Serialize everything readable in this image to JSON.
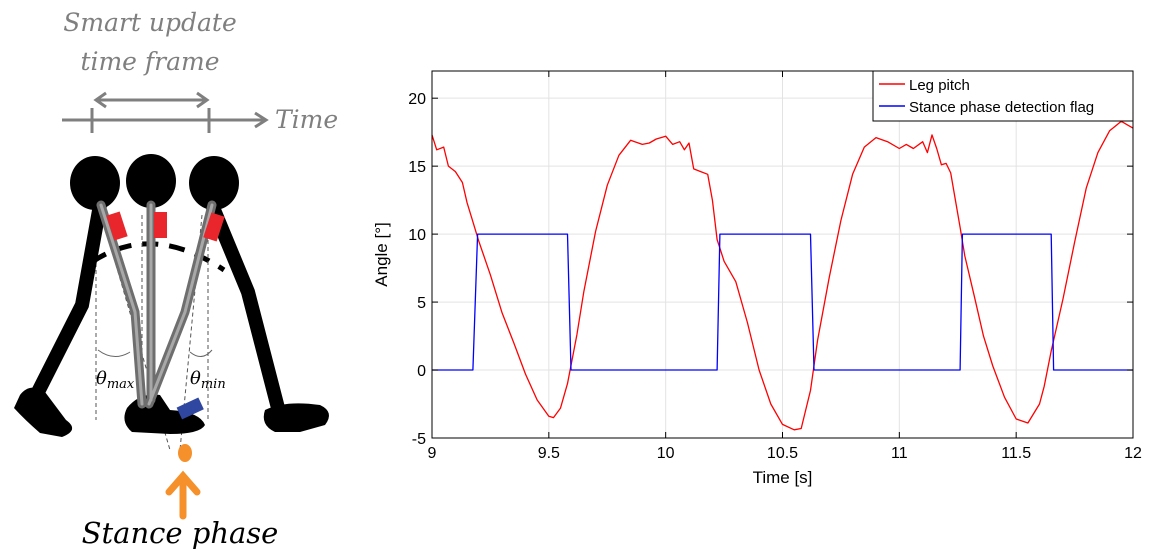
{
  "diagram": {
    "top_label_line1": "Smart update",
    "top_label_line2": "time frame",
    "time_label": "Time",
    "theta_max_base": "θ",
    "theta_max_sub": "max",
    "theta_min_base": "θ",
    "theta_min_sub": "min",
    "bottom_label": "Stance phase",
    "colors": {
      "timeline": "#7f7f7f",
      "limb_dark": "#000000",
      "leg_gray": "#8c8c8c",
      "sensor_red": "#e8262b",
      "sensor_blue": "#2f47a0",
      "stance_arrow": "#f5902a"
    }
  },
  "chart_data": {
    "type": "line",
    "title": "",
    "xlabel": "Time [s]",
    "ylabel": "Angle [°]",
    "xlim": [
      9,
      12
    ],
    "ylim": [
      -5,
      22
    ],
    "xticks": [
      9,
      9.5,
      10,
      10.5,
      11,
      11.5,
      12
    ],
    "xtick_labels": [
      "9",
      "9.5",
      "10",
      "10.5",
      "11",
      "11.5",
      "12"
    ],
    "yticks": [
      -5,
      0,
      5,
      10,
      15,
      20
    ],
    "ytick_labels": [
      "-5",
      "0",
      "5",
      "10",
      "15",
      "20"
    ],
    "grid": true,
    "legend_position": "top-right",
    "series": [
      {
        "name": "Leg pitch",
        "color": "#ff0000",
        "x": [
          9.0,
          9.02,
          9.05,
          9.07,
          9.1,
          9.13,
          9.15,
          9.17,
          9.2,
          9.25,
          9.3,
          9.35,
          9.4,
          9.45,
          9.5,
          9.52,
          9.55,
          9.58,
          9.62,
          9.65,
          9.7,
          9.75,
          9.8,
          9.85,
          9.9,
          9.93,
          9.96,
          10.0,
          10.03,
          10.06,
          10.08,
          10.1,
          10.12,
          10.15,
          10.18,
          10.2,
          10.22,
          10.25,
          10.3,
          10.35,
          10.4,
          10.45,
          10.5,
          10.55,
          10.58,
          10.62,
          10.65,
          10.7,
          10.75,
          10.8,
          10.85,
          10.9,
          10.95,
          11.0,
          11.03,
          11.06,
          11.1,
          11.12,
          11.14,
          11.16,
          11.18,
          11.2,
          11.22,
          11.24,
          11.26,
          11.28,
          11.32,
          11.36,
          11.4,
          11.45,
          11.5,
          11.55,
          11.6,
          11.62,
          11.65,
          11.7,
          11.75,
          11.8,
          11.85,
          11.9,
          11.95,
          11.98,
          12.0
        ],
        "y": [
          17.3,
          16.2,
          16.4,
          15.0,
          14.6,
          13.8,
          12.3,
          11.2,
          9.5,
          7.0,
          4.2,
          2.0,
          -0.3,
          -2.2,
          -3.4,
          -3.5,
          -2.8,
          -1.0,
          2.6,
          5.8,
          10.2,
          13.6,
          15.8,
          16.9,
          16.6,
          16.7,
          17.0,
          17.2,
          16.6,
          16.8,
          16.2,
          16.7,
          14.8,
          14.6,
          14.4,
          12.5,
          9.6,
          8.0,
          6.5,
          3.5,
          0.0,
          -2.5,
          -4.0,
          -4.4,
          -4.3,
          -1.5,
          2.2,
          6.8,
          11.0,
          14.4,
          16.4,
          17.1,
          16.8,
          16.3,
          16.6,
          16.3,
          16.8,
          16.0,
          17.3,
          16.3,
          15.1,
          15.2,
          14.5,
          12.5,
          10.5,
          8.4,
          5.5,
          2.5,
          0.3,
          -2.0,
          -3.6,
          -3.9,
          -2.5,
          -1.2,
          1.4,
          5.2,
          9.4,
          13.4,
          16.0,
          17.6,
          18.3,
          18.0,
          17.8
        ]
      },
      {
        "name": "Stance phase detection flag",
        "color": "#0000ff",
        "x": [
          9.0,
          9.175,
          9.195,
          9.58,
          9.595,
          10.22,
          10.232,
          10.62,
          10.635,
          11.26,
          11.27,
          11.65,
          11.66,
          12.0
        ],
        "y": [
          0,
          0,
          10,
          10,
          0,
          0,
          10,
          10,
          0,
          0,
          10,
          10,
          0,
          0
        ]
      }
    ]
  }
}
